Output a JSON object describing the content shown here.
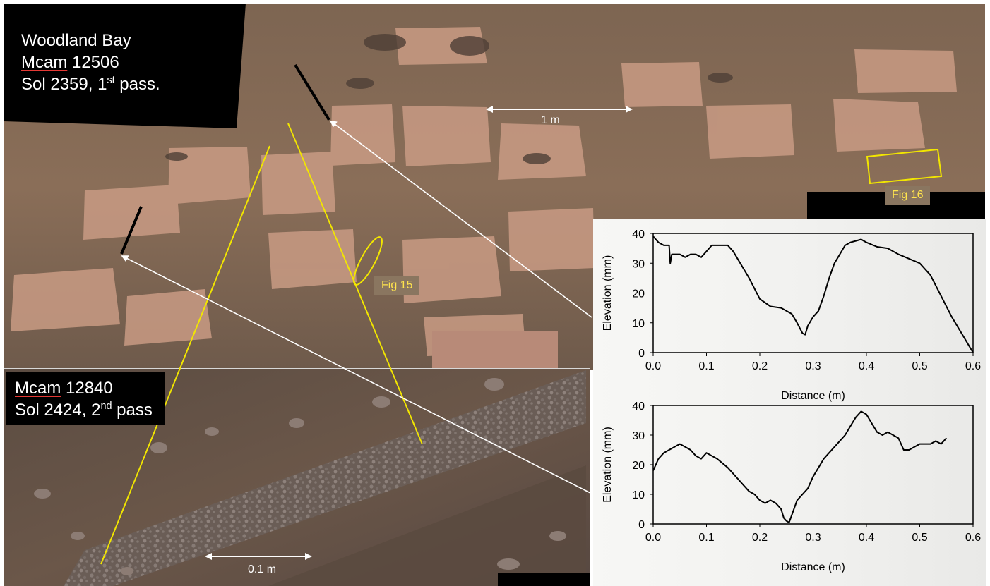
{
  "labels": {
    "first_pass": {
      "site": "Woodland Bay",
      "mcam_prefix": "Mcam",
      "mcam_number": "12506",
      "sol_text": "Sol 2359, 1",
      "sol_sup": "st",
      "sol_suffix": " pass."
    },
    "second_pass": {
      "mcam_prefix": "Mcam",
      "mcam_number": "12840",
      "sol_text": "Sol 2424, 2",
      "sol_sup": "nd",
      "sol_suffix": " pass"
    }
  },
  "annotations": {
    "scale_1m": "1 m",
    "scale_01m": "0.1 m",
    "fig15": "Fig 15",
    "fig16": "Fig 16"
  },
  "colors": {
    "trace_yellow": "#f2e600",
    "marker_black": "#000000",
    "arrow_white": "#ffffff",
    "fig_tag_bg": "#8a7660",
    "fig_tag_text": "#ffe44d"
  },
  "chart_data": [
    {
      "type": "line",
      "title": "",
      "xlabel": "Distance (m)",
      "ylabel": "Elevation (mm)",
      "xlim": [
        0,
        0.6
      ],
      "ylim": [
        0,
        40
      ],
      "xticks": [
        "0.0",
        "0.1",
        "0.2",
        "0.3",
        "0.4",
        "0.5",
        "0.6"
      ],
      "yticks": [
        "0",
        "10",
        "20",
        "30",
        "40"
      ],
      "grid": false,
      "series": [
        {
          "color": "#000000",
          "x": [
            0.0,
            0.01,
            0.02,
            0.03,
            0.032,
            0.035,
            0.04,
            0.05,
            0.06,
            0.07,
            0.08,
            0.09,
            0.1,
            0.11,
            0.12,
            0.13,
            0.14,
            0.15,
            0.16,
            0.18,
            0.2,
            0.22,
            0.24,
            0.26,
            0.27,
            0.28,
            0.285,
            0.29,
            0.3,
            0.31,
            0.32,
            0.33,
            0.34,
            0.35,
            0.36,
            0.37,
            0.38,
            0.39,
            0.4,
            0.42,
            0.44,
            0.46,
            0.48,
            0.5,
            0.52,
            0.54,
            0.56,
            0.58,
            0.6
          ],
          "y": [
            39,
            37,
            36,
            36,
            30,
            33,
            33,
            33,
            32,
            33,
            33,
            32,
            34,
            36,
            36,
            36,
            36,
            34,
            31,
            25,
            18,
            15.5,
            15,
            13,
            10,
            6.5,
            6,
            9,
            12,
            14,
            19,
            25,
            30,
            33,
            36,
            37,
            37.5,
            38,
            37,
            35.5,
            35,
            33,
            31.5,
            30,
            26,
            19,
            12,
            6,
            0
          ]
        }
      ]
    },
    {
      "type": "line",
      "title": "",
      "xlabel": "Distance (m)",
      "ylabel": "Elevation (mm)",
      "xlim": [
        0,
        0.6
      ],
      "ylim": [
        0,
        40
      ],
      "xticks": [
        "0.0",
        "0.1",
        "0.2",
        "0.3",
        "0.4",
        "0.5",
        "0.6"
      ],
      "yticks": [
        "0",
        "10",
        "20",
        "30",
        "40"
      ],
      "grid": false,
      "series": [
        {
          "color": "#000000",
          "x": [
            0.0,
            0.01,
            0.02,
            0.03,
            0.04,
            0.05,
            0.06,
            0.07,
            0.08,
            0.09,
            0.1,
            0.12,
            0.14,
            0.16,
            0.17,
            0.18,
            0.19,
            0.2,
            0.21,
            0.22,
            0.23,
            0.24,
            0.245,
            0.25,
            0.255,
            0.26,
            0.27,
            0.28,
            0.29,
            0.3,
            0.32,
            0.34,
            0.36,
            0.37,
            0.38,
            0.39,
            0.4,
            0.41,
            0.42,
            0.43,
            0.44,
            0.45,
            0.46,
            0.47,
            0.48,
            0.49,
            0.5,
            0.51,
            0.52,
            0.53,
            0.54,
            0.55
          ],
          "y": [
            18,
            22,
            24,
            25,
            26,
            27,
            26,
            25,
            23,
            22,
            24,
            22,
            19,
            15,
            13,
            11,
            10,
            8,
            7,
            8,
            7,
            5,
            2,
            1,
            0.5,
            3,
            8,
            10,
            12,
            16,
            22,
            26,
            30,
            33,
            36,
            38,
            37,
            34,
            31,
            30,
            31,
            30,
            29,
            25,
            25,
            26,
            27,
            27,
            27,
            28,
            27,
            29
          ]
        }
      ]
    }
  ]
}
